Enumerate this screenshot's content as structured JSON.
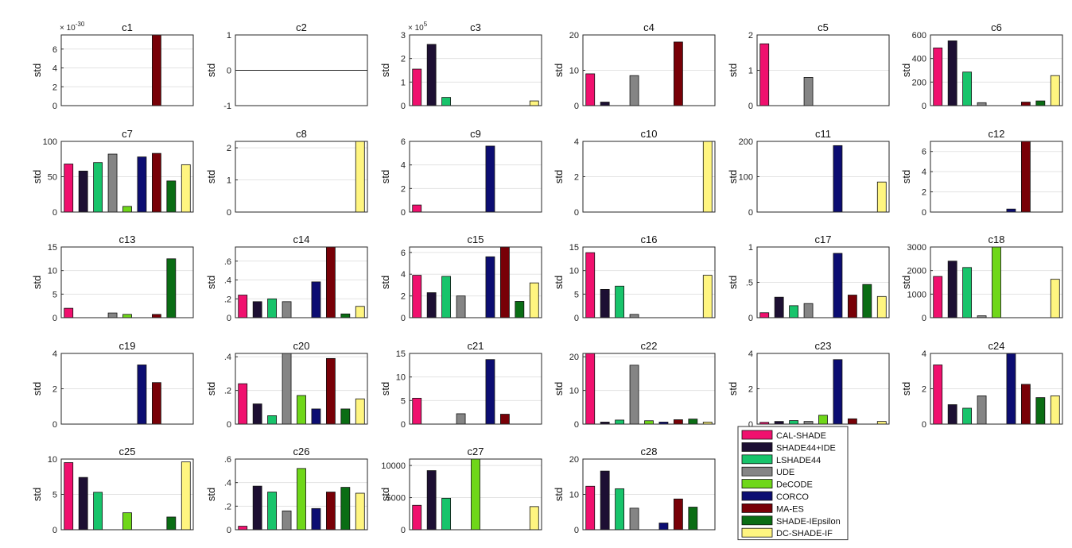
{
  "chart_data": {
    "type": "bar",
    "legend": {
      "placement": "bottom-right",
      "entries": [
        "CAL-SHADE",
        "SHADE44+IDE",
        "LSHADE44",
        "UDE",
        "DeCODE",
        "CORCO",
        "MA-ES",
        "SHADE-IEpsilon",
        "DC-SHADE-IF"
      ]
    },
    "colors": [
      "#f0106e",
      "#1d0f33",
      "#18c46b",
      "#858585",
      "#6fd719",
      "#0c0d72",
      "#780007",
      "#0a6d14",
      "#fff580"
    ],
    "ylabel": "std",
    "grid": true,
    "charts": [
      {
        "title": "c1",
        "ylim": [
          0,
          7.5
        ],
        "yticks": [
          0,
          2,
          4,
          6
        ],
        "multiplier": "× 10^-30",
        "values": [
          0,
          0,
          0,
          0,
          0,
          0,
          7.5,
          0,
          0
        ]
      },
      {
        "title": "c2",
        "ylim": [
          -1,
          1
        ],
        "yticks": [
          -1,
          0,
          1
        ],
        "values": [
          0,
          0,
          0,
          0,
          0,
          0,
          0,
          0,
          0
        ]
      },
      {
        "title": "c3",
        "ylim": [
          0,
          3
        ],
        "yticks": [
          0,
          1,
          2,
          3
        ],
        "multiplier": "× 10^5",
        "values": [
          1.55,
          2.6,
          0.35,
          0,
          0,
          0,
          0,
          0,
          0.2
        ]
      },
      {
        "title": "c4",
        "ylim": [
          0,
          20
        ],
        "yticks": [
          0,
          10,
          20
        ],
        "values": [
          9,
          1,
          0,
          8.5,
          0,
          0,
          18,
          0,
          0
        ]
      },
      {
        "title": "c5",
        "ylim": [
          0,
          2
        ],
        "yticks": [
          0,
          1,
          2
        ],
        "values": [
          1.75,
          0,
          0,
          0.8,
          0,
          0,
          0,
          0,
          0
        ]
      },
      {
        "title": "c6",
        "ylim": [
          0,
          600
        ],
        "yticks": [
          0,
          200,
          400,
          600
        ],
        "values": [
          490,
          550,
          285,
          25,
          0,
          0,
          30,
          40,
          255
        ]
      },
      {
        "title": "c7",
        "ylim": [
          0,
          100
        ],
        "yticks": [
          0,
          50,
          100
        ],
        "values": [
          68,
          58,
          70,
          82,
          8,
          78,
          83,
          44,
          67
        ]
      },
      {
        "title": "c8",
        "ylim": [
          0,
          2.2
        ],
        "yticks": [
          0,
          1,
          2
        ],
        "values": [
          0,
          0,
          0,
          0,
          0,
          0,
          0,
          0,
          2.2
        ]
      },
      {
        "title": "c9",
        "ylim": [
          0,
          6
        ],
        "yticks": [
          0,
          2,
          4,
          6
        ],
        "values": [
          0.6,
          0,
          0,
          0,
          0,
          5.6,
          0,
          0,
          0
        ]
      },
      {
        "title": "c10",
        "ylim": [
          0,
          4
        ],
        "yticks": [
          0,
          2,
          4
        ],
        "values": [
          0,
          0,
          0,
          0,
          0,
          0,
          0,
          0,
          4
        ]
      },
      {
        "title": "c11",
        "ylim": [
          0,
          200
        ],
        "yticks": [
          0,
          100,
          200
        ],
        "values": [
          0,
          0,
          0,
          0,
          0,
          188,
          0,
          0,
          85
        ]
      },
      {
        "title": "c12",
        "ylim": [
          0,
          7
        ],
        "yticks": [
          0,
          2,
          4,
          6
        ],
        "values": [
          0,
          0,
          0,
          0,
          0,
          0.3,
          7,
          0,
          0
        ]
      },
      {
        "title": "c13",
        "ylim": [
          0,
          15
        ],
        "yticks": [
          0,
          5,
          10,
          15
        ],
        "values": [
          2,
          0,
          0,
          1,
          0.7,
          0,
          0.7,
          12.5,
          0
        ]
      },
      {
        "title": "c14",
        "ylim": [
          0,
          0.75
        ],
        "yticks": [
          0,
          0.2,
          0.4,
          0.6
        ],
        "values": [
          0.24,
          0.17,
          0.2,
          0.17,
          0,
          0.38,
          0.75,
          0.04,
          0.12
        ]
      },
      {
        "title": "c15",
        "ylim": [
          0,
          6.5
        ],
        "yticks": [
          0,
          2,
          4,
          6
        ],
        "values": [
          3.9,
          2.3,
          3.8,
          2,
          0,
          5.6,
          6.5,
          1.5,
          3.2
        ]
      },
      {
        "title": "c16",
        "ylim": [
          0,
          15
        ],
        "yticks": [
          0,
          5,
          10,
          15
        ],
        "values": [
          13.8,
          6,
          6.7,
          0.7,
          0,
          0,
          0,
          0,
          9
        ]
      },
      {
        "title": "c17",
        "ylim": [
          0,
          1
        ],
        "yticks": [
          0,
          0.5,
          1
        ],
        "values": [
          0.07,
          0.29,
          0.17,
          0.2,
          0,
          0.91,
          0.32,
          0.47,
          0.3
        ]
      },
      {
        "title": "c18",
        "ylim": [
          0,
          3000
        ],
        "yticks": [
          0,
          1000,
          2000,
          3000
        ],
        "values": [
          1750,
          2400,
          2130,
          80,
          3000,
          0,
          0,
          0,
          1630
        ]
      },
      {
        "title": "c19",
        "ylim": [
          0,
          4
        ],
        "yticks": [
          0,
          2,
          4
        ],
        "values": [
          0,
          0,
          0,
          0,
          0,
          3.35,
          2.35,
          0,
          0
        ]
      },
      {
        "title": "c20",
        "ylim": [
          0,
          0.42
        ],
        "yticks": [
          0,
          0.2,
          0.4
        ],
        "values": [
          0.24,
          0.12,
          0.05,
          0.42,
          0.17,
          0.09,
          0.39,
          0.09,
          0.15
        ]
      },
      {
        "title": "c21",
        "ylim": [
          0,
          15
        ],
        "yticks": [
          0,
          5,
          10,
          15
        ],
        "values": [
          5.5,
          0,
          0,
          2.2,
          0,
          13.7,
          2.1,
          0,
          0
        ]
      },
      {
        "title": "c22",
        "ylim": [
          0,
          21
        ],
        "yticks": [
          0,
          10,
          20
        ],
        "values": [
          21,
          0.6,
          1.2,
          17.5,
          1,
          0.6,
          1.3,
          1.5,
          0.6
        ]
      },
      {
        "title": "c23",
        "ylim": [
          0,
          4
        ],
        "yticks": [
          0,
          2,
          4
        ],
        "values": [
          0.1,
          0.15,
          0.2,
          0.15,
          0.5,
          3.65,
          0.3,
          0,
          0.15
        ]
      },
      {
        "title": "c24",
        "ylim": [
          0,
          4
        ],
        "yticks": [
          0,
          2,
          4
        ],
        "values": [
          3.35,
          1.1,
          0.9,
          1.6,
          0,
          4,
          2.25,
          1.5,
          1.6
        ]
      },
      {
        "title": "c25",
        "ylim": [
          0,
          10
        ],
        "yticks": [
          0,
          5,
          10
        ],
        "values": [
          9.5,
          7.4,
          5.3,
          0,
          2.4,
          0,
          0,
          1.8,
          9.6
        ]
      },
      {
        "title": "c26",
        "ylim": [
          0,
          0.6
        ],
        "yticks": [
          0,
          0.2,
          0.4,
          0.6
        ],
        "values": [
          0.03,
          0.37,
          0.32,
          0.16,
          0.52,
          0.18,
          0.32,
          0.36,
          0.31
        ]
      },
      {
        "title": "c27",
        "ylim": [
          0,
          11000
        ],
        "yticks": [
          0,
          5000,
          10000
        ],
        "values": [
          3800,
          9200,
          4900,
          0,
          11000,
          0,
          0,
          0,
          3600
        ]
      },
      {
        "title": "c28",
        "ylim": [
          0,
          20
        ],
        "yticks": [
          0,
          10,
          20
        ],
        "values": [
          12.3,
          16.6,
          11.6,
          6.1,
          0,
          1.9,
          8.7,
          6.4,
          0
        ]
      }
    ]
  }
}
